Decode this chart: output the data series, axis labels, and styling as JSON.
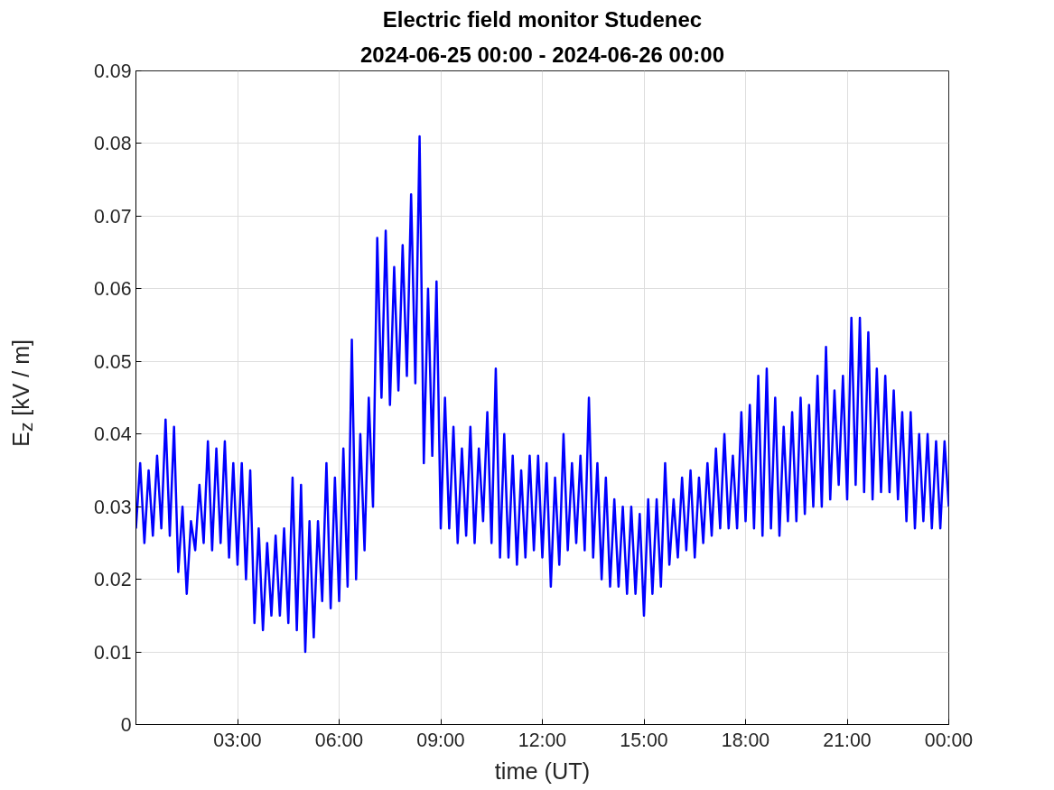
{
  "chart_data": {
    "type": "line",
    "title": "Electric field monitor Studenec",
    "subtitle": "2024-06-25 00:00 - 2024-06-26 00:00",
    "xlabel": "time (UT)",
    "ylabel": "E$_{z}$ [kV / m]",
    "xlim": [
      0,
      24
    ],
    "ylim": [
      0,
      0.09
    ],
    "xticks": [
      {
        "value": 3,
        "label": "03:00"
      },
      {
        "value": 6,
        "label": "06:00"
      },
      {
        "value": 9,
        "label": "09:00"
      },
      {
        "value": 12,
        "label": "12:00"
      },
      {
        "value": 15,
        "label": "15:00"
      },
      {
        "value": 18,
        "label": "18:00"
      },
      {
        "value": 21,
        "label": "21:00"
      },
      {
        "value": 24,
        "label": "00:00"
      }
    ],
    "yticks": [
      0,
      0.01,
      0.02,
      0.03,
      0.04,
      0.05,
      0.06,
      0.07,
      0.08,
      0.09
    ],
    "grid": true,
    "marker": "none",
    "line_style": "solid",
    "series": [
      {
        "color": "#0000ff",
        "x": [
          0,
          0.125,
          0.25,
          0.375,
          0.5,
          0.625,
          0.75,
          0.875,
          1,
          1.125,
          1.25,
          1.375,
          1.5,
          1.625,
          1.75,
          1.875,
          2,
          2.125,
          2.25,
          2.375,
          2.5,
          2.625,
          2.75,
          2.875,
          3,
          3.125,
          3.25,
          3.375,
          3.5,
          3.625,
          3.75,
          3.875,
          4,
          4.125,
          4.25,
          4.375,
          4.5,
          4.625,
          4.75,
          4.875,
          5,
          5.125,
          5.25,
          5.375,
          5.5,
          5.625,
          5.75,
          5.875,
          6,
          6.125,
          6.25,
          6.375,
          6.5,
          6.625,
          6.75,
          6.875,
          7,
          7.125,
          7.25,
          7.375,
          7.5,
          7.625,
          7.75,
          7.875,
          8,
          8.125,
          8.25,
          8.375,
          8.5,
          8.625,
          8.75,
          8.875,
          9,
          9.125,
          9.25,
          9.375,
          9.5,
          9.625,
          9.75,
          9.875,
          10,
          10.125,
          10.25,
          10.375,
          10.5,
          10.625,
          10.75,
          10.875,
          11,
          11.125,
          11.25,
          11.375,
          11.5,
          11.625,
          11.75,
          11.875,
          12,
          12.125,
          12.25,
          12.375,
          12.5,
          12.625,
          12.75,
          12.875,
          13,
          13.125,
          13.25,
          13.375,
          13.5,
          13.625,
          13.75,
          13.875,
          14,
          14.125,
          14.25,
          14.375,
          14.5,
          14.625,
          14.75,
          14.875,
          15,
          15.125,
          15.25,
          15.375,
          15.5,
          15.625,
          15.75,
          15.875,
          16,
          16.125,
          16.25,
          16.375,
          16.5,
          16.625,
          16.75,
          16.875,
          17,
          17.125,
          17.25,
          17.375,
          17.5,
          17.625,
          17.75,
          17.875,
          18,
          18.125,
          18.25,
          18.375,
          18.5,
          18.625,
          18.75,
          18.875,
          19,
          19.125,
          19.25,
          19.375,
          19.5,
          19.625,
          19.75,
          19.875,
          20,
          20.125,
          20.25,
          20.375,
          20.5,
          20.625,
          20.75,
          20.875,
          21,
          21.125,
          21.25,
          21.375,
          21.5,
          21.625,
          21.75,
          21.875,
          22,
          22.125,
          22.25,
          22.375,
          22.5,
          22.625,
          22.75,
          22.875,
          23,
          23.125,
          23.25,
          23.375,
          23.5,
          23.625,
          23.75,
          23.875,
          24
        ],
        "values": [
          0.027,
          0.036,
          0.025,
          0.035,
          0.026,
          0.037,
          0.027,
          0.042,
          0.026,
          0.041,
          0.021,
          0.03,
          0.018,
          0.028,
          0.024,
          0.033,
          0.025,
          0.039,
          0.024,
          0.038,
          0.025,
          0.039,
          0.023,
          0.036,
          0.022,
          0.036,
          0.02,
          0.035,
          0.014,
          0.027,
          0.013,
          0.025,
          0.015,
          0.026,
          0.015,
          0.027,
          0.014,
          0.034,
          0.013,
          0.033,
          0.01,
          0.028,
          0.012,
          0.028,
          0.017,
          0.036,
          0.016,
          0.034,
          0.017,
          0.038,
          0.019,
          0.053,
          0.02,
          0.04,
          0.024,
          0.045,
          0.03,
          0.067,
          0.045,
          0.068,
          0.044,
          0.063,
          0.046,
          0.066,
          0.048,
          0.073,
          0.047,
          0.081,
          0.036,
          0.06,
          0.037,
          0.061,
          0.027,
          0.045,
          0.027,
          0.041,
          0.025,
          0.038,
          0.026,
          0.041,
          0.025,
          0.038,
          0.028,
          0.043,
          0.025,
          0.049,
          0.023,
          0.04,
          0.023,
          0.037,
          0.022,
          0.035,
          0.023,
          0.037,
          0.024,
          0.037,
          0.023,
          0.036,
          0.019,
          0.034,
          0.022,
          0.04,
          0.024,
          0.036,
          0.025,
          0.037,
          0.024,
          0.045,
          0.023,
          0.036,
          0.02,
          0.034,
          0.019,
          0.031,
          0.019,
          0.03,
          0.018,
          0.03,
          0.018,
          0.029,
          0.015,
          0.031,
          0.018,
          0.031,
          0.019,
          0.036,
          0.022,
          0.031,
          0.023,
          0.034,
          0.024,
          0.035,
          0.023,
          0.034,
          0.025,
          0.036,
          0.026,
          0.038,
          0.027,
          0.04,
          0.027,
          0.037,
          0.027,
          0.043,
          0.028,
          0.044,
          0.027,
          0.048,
          0.026,
          0.049,
          0.027,
          0.045,
          0.026,
          0.041,
          0.028,
          0.043,
          0.028,
          0.045,
          0.029,
          0.044,
          0.03,
          0.048,
          0.03,
          0.052,
          0.031,
          0.046,
          0.033,
          0.048,
          0.031,
          0.056,
          0.033,
          0.056,
          0.032,
          0.054,
          0.031,
          0.049,
          0.032,
          0.048,
          0.032,
          0.046,
          0.031,
          0.043,
          0.028,
          0.043,
          0.027,
          0.04,
          0.028,
          0.04,
          0.027,
          0.039,
          0.027,
          0.039,
          0.03
        ]
      }
    ]
  }
}
